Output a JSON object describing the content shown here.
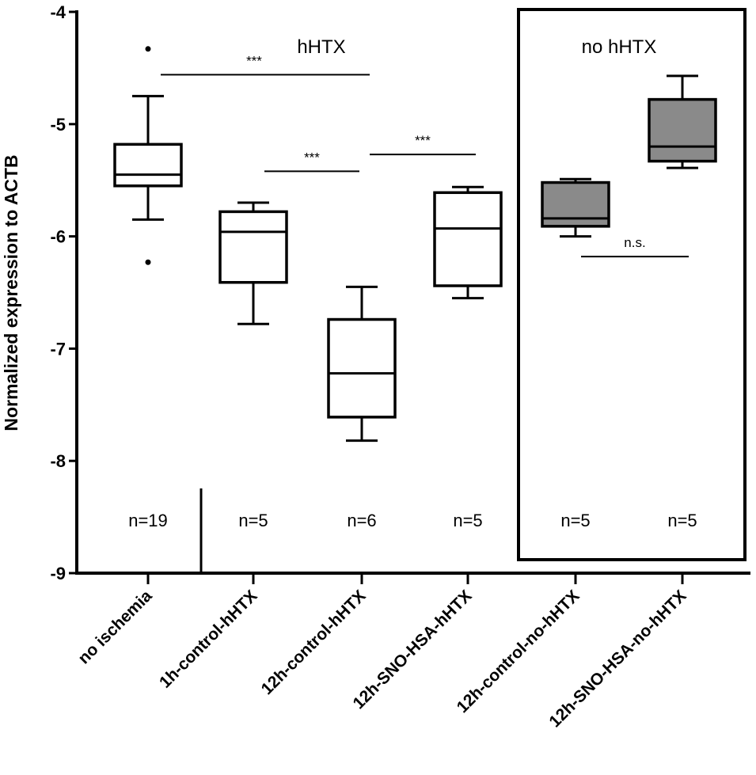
{
  "chart_data": {
    "type": "box",
    "ylabel": "Normalized expression to ACTB",
    "xlabel": "",
    "ylim": [
      -9,
      -4
    ],
    "yticks": [
      -9,
      -8,
      -7,
      -6,
      -5,
      -4
    ],
    "categories": [
      "no ischemia",
      "1h-control-hHTX",
      "12h-control-hHTX",
      "12h-SNO-HSA-hHTX",
      "12h-control-no-hHTX",
      "12h-SNO-HSA-no-hHTX"
    ],
    "boxes": [
      {
        "category": "no ischemia",
        "whisker_low": -5.85,
        "q1": -5.55,
        "median": -5.45,
        "q3": -5.18,
        "whisker_high": -4.75,
        "outliers": [
          -4.33,
          -6.23
        ],
        "n": "n=19",
        "fill": "#ffffff"
      },
      {
        "category": "1h-control-hHTX",
        "whisker_low": -6.78,
        "q1": -6.41,
        "median": -5.96,
        "q3": -5.78,
        "whisker_high": -5.7,
        "outliers": [],
        "n": "n=5",
        "fill": "#ffffff"
      },
      {
        "category": "12h-control-hHTX",
        "whisker_low": -7.82,
        "q1": -7.61,
        "median": -7.22,
        "q3": -6.74,
        "whisker_high": -6.45,
        "outliers": [],
        "n": "n=6",
        "fill": "#ffffff"
      },
      {
        "category": "12h-SNO-HSA-hHTX",
        "whisker_low": -6.55,
        "q1": -6.44,
        "median": -5.93,
        "q3": -5.61,
        "whisker_high": -5.56,
        "outliers": [],
        "n": "n=5",
        "fill": "#ffffff"
      },
      {
        "category": "12h-control-no-hHTX",
        "whisker_low": -6.0,
        "q1": -5.91,
        "median": -5.84,
        "q3": -5.52,
        "whisker_high": -5.49,
        "outliers": [],
        "n": "n=5",
        "fill": "#8a8a8a"
      },
      {
        "category": "12h-SNO-HSA-no-hHTX",
        "whisker_low": -5.39,
        "q1": -5.33,
        "median": -5.2,
        "q3": -4.78,
        "whisker_high": -4.57,
        "outliers": [],
        "n": "n=5",
        "fill": "#8a8a8a"
      }
    ],
    "group_labels": [
      {
        "text": "hHTX",
        "over": [
          1,
          3
        ]
      },
      {
        "text": "no hHTX",
        "over": [
          4,
          5
        ]
      }
    ],
    "significance": [
      {
        "from": 0,
        "to": 2,
        "label": "***",
        "y": -4.56
      },
      {
        "from": 1,
        "to": 2,
        "label": "***",
        "y": -5.42
      },
      {
        "from": 2,
        "to": 3,
        "label": "***",
        "y": -5.27
      },
      {
        "from": 4,
        "to": 5,
        "label": "n.s.",
        "y": -6.18
      }
    ]
  }
}
